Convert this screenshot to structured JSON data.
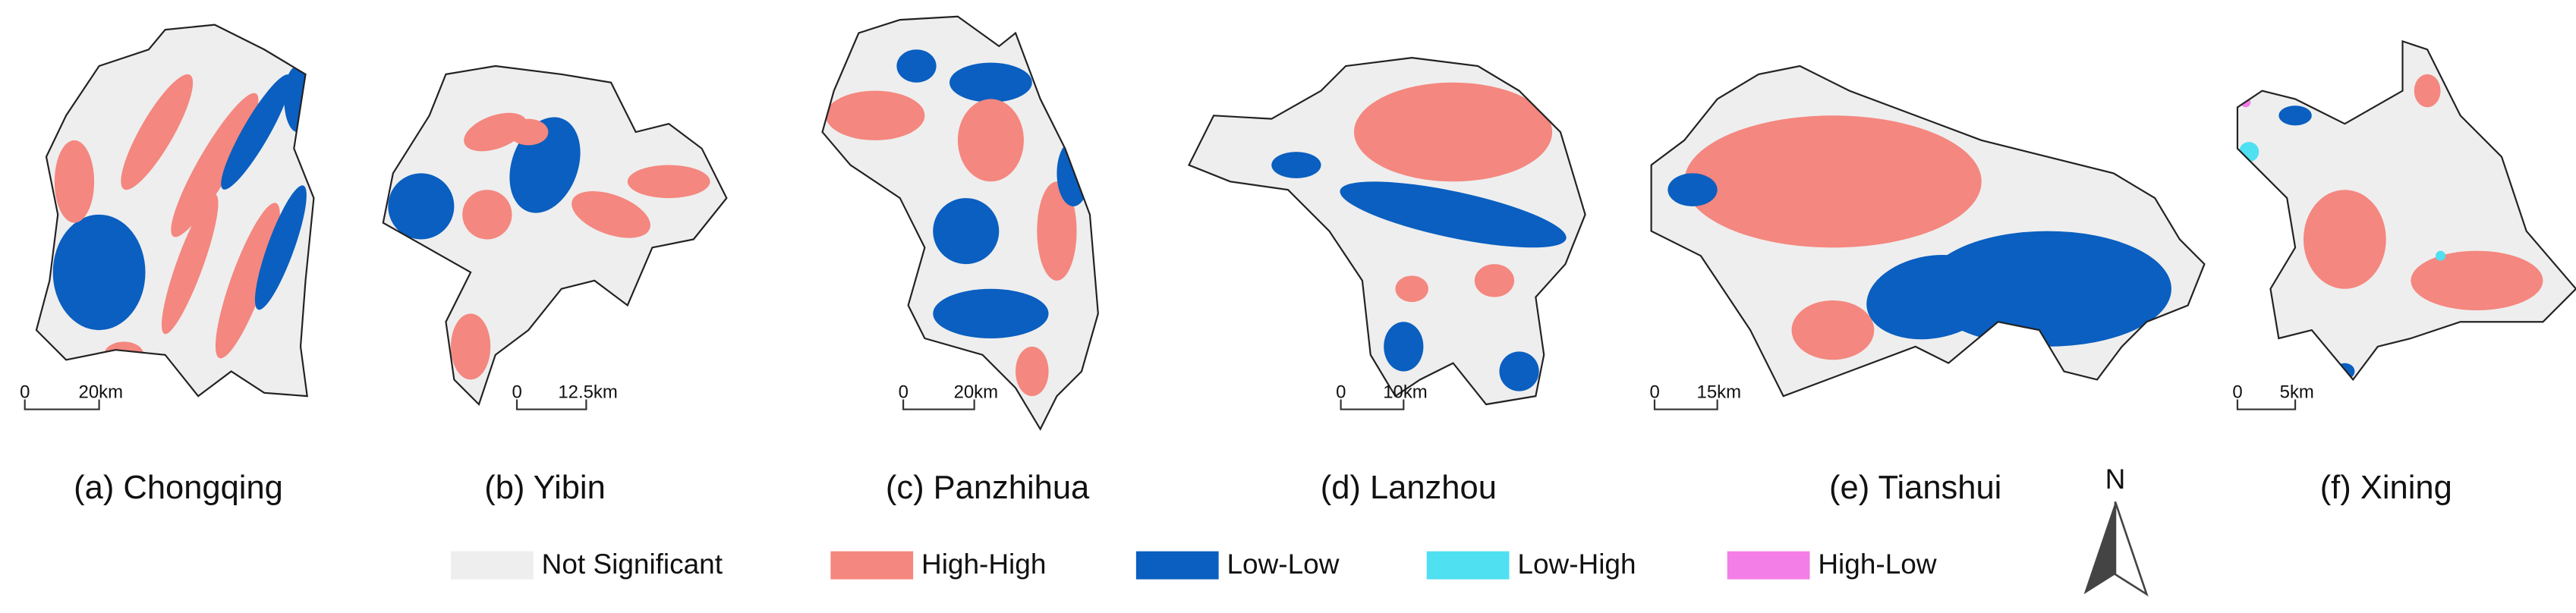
{
  "panels": [
    {
      "caption": "(a) Chongqing",
      "scale": [
        "0",
        "20km"
      ]
    },
    {
      "caption": "(b) Yibin",
      "scale": [
        "0",
        "12.5km"
      ]
    },
    {
      "caption": "(c) Panzhihua",
      "scale": [
        "0",
        "20km"
      ]
    },
    {
      "caption": "(d) Lanzhou",
      "scale": [
        "0",
        "10km"
      ]
    },
    {
      "caption": "(e) Tianshui",
      "scale": [
        "0",
        "15km"
      ]
    },
    {
      "caption": "(f) Xining",
      "scale": [
        "0",
        "5km"
      ]
    }
  ],
  "legend": [
    {
      "label": "Not Significant",
      "color": "#eeeeee"
    },
    {
      "label": "High-High",
      "color": "#f4877f"
    },
    {
      "label": "Low-Low",
      "color": "#0a5fc0"
    },
    {
      "label": "Low-High",
      "color": "#4fe0f2"
    },
    {
      "label": "High-Low",
      "color": "#f47ee8"
    }
  ],
  "north": "N"
}
